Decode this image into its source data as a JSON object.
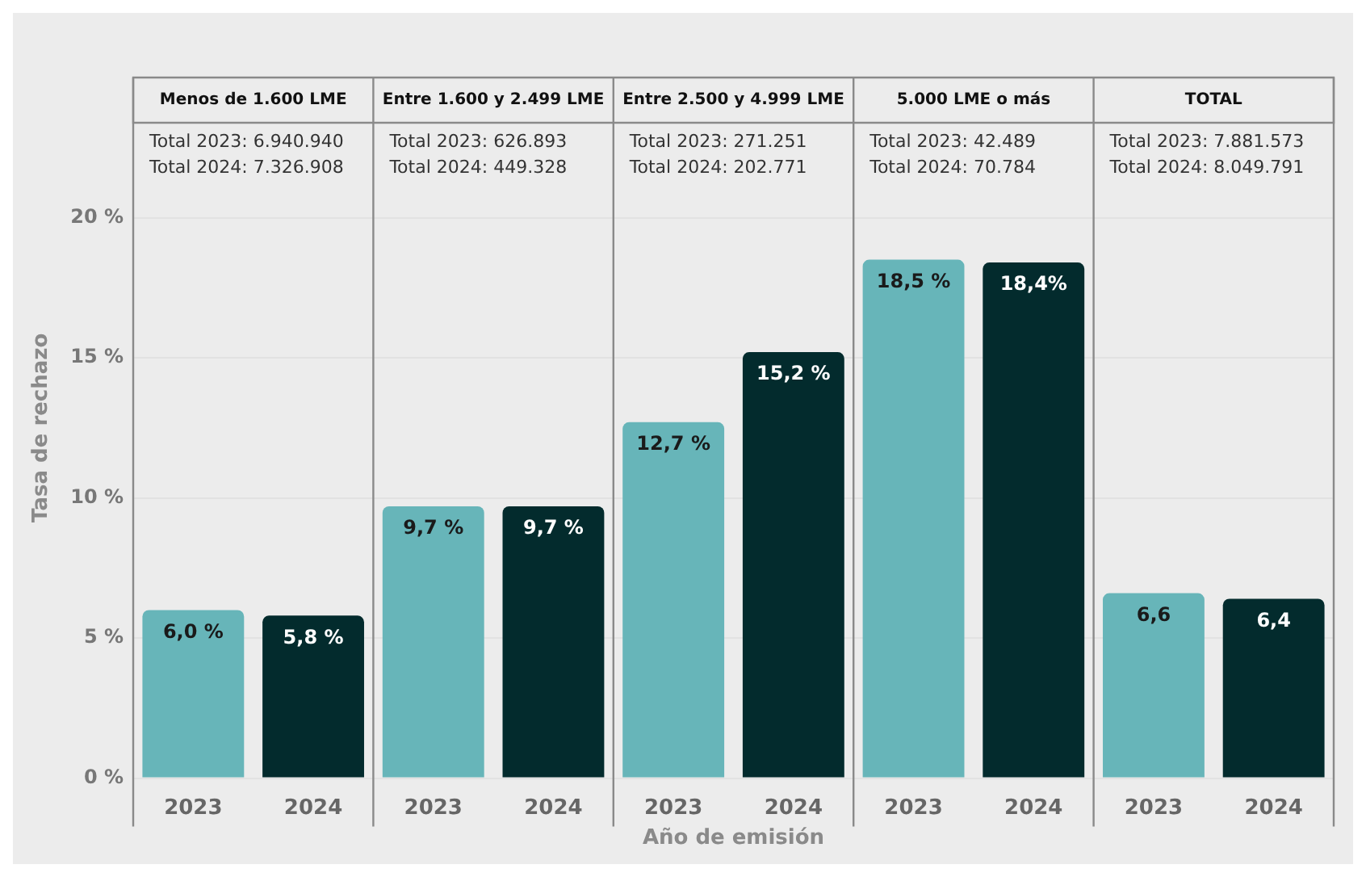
{
  "chart_data": {
    "type": "bar",
    "xlabel": "Año de emisión",
    "ylabel": "Tasa de rechazo",
    "categories": [
      "2023",
      "2024",
      "2023",
      "2024",
      "2023",
      "2024",
      "2023",
      "2024",
      "2023",
      "2024"
    ],
    "values": [
      6.0,
      5.8,
      9.7,
      9.7,
      12.7,
      15.2,
      18.5,
      18.4,
      6.6,
      6.4
    ],
    "colors": [
      "#67b5b9",
      "#032b2d",
      "#67b5b9",
      "#032b2d",
      "#67b5b9",
      "#032b2d",
      "#67b5b9",
      "#032b2d",
      "#67b5b9",
      "#032b2d"
    ],
    "value_labels": [
      "6,0 %",
      "5,8 %",
      "9,7 %",
      "9,7 %",
      "12,7 %",
      "15,2 %",
      "18,5 %",
      "18,4%",
      "6,6",
      "6,4"
    ],
    "ylim": [
      0,
      25
    ],
    "yticks": [
      {
        "value": 0,
        "label": "0 %"
      },
      {
        "value": 5,
        "label": "5 %"
      },
      {
        "value": 10,
        "label": "10 %"
      },
      {
        "value": 15,
        "label": "15 %"
      },
      {
        "value": 20,
        "label": "20 %"
      }
    ],
    "grid": "y",
    "legend": false,
    "annotations": [
      "Menos de 1.600 LME",
      "Total 2023: 6.940.940",
      "Total 2024: 7.326.908",
      "Entre 1.600 y 2.499 LME",
      "Total 2023: 626.893",
      "Total 2024: 449.328",
      "Entre 2.500 y 4.999 LME",
      "Total 2023: 271.251",
      "Total 2024: 202.771",
      "5.000 LME o más",
      "Total 2023: 42.489",
      "Total 2024: 70.784",
      "TOTAL",
      "Total 2023: 7.881.573",
      "Total 2024: 8.049.791"
    ]
  }
}
